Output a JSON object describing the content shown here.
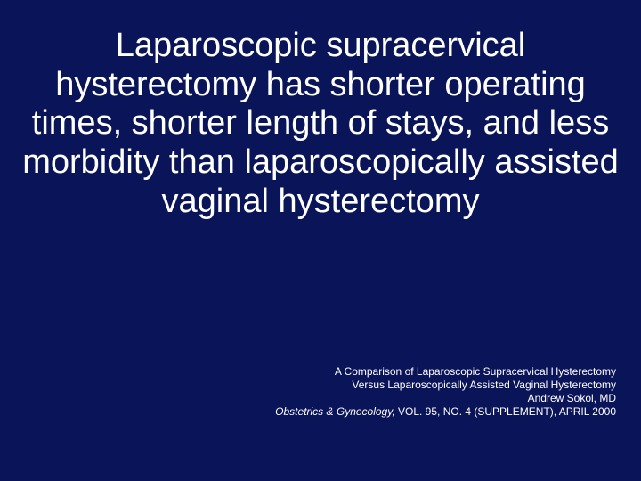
{
  "slide": {
    "background_color": "#0a1458",
    "text_color": "#ffffff",
    "main_statement": "Laparoscopic supracervical hysterectomy has shorter operating times, shorter length of stays, and less morbidity than laparoscopically assisted vaginal hysterectomy",
    "main_fontsize": 38,
    "citation": {
      "line1": "A Comparison of Laparoscopic Supracervical Hysterectomy",
      "line2": "Versus Laparoscopically Assisted Vaginal Hysterectomy",
      "line3": "Andrew Sokol, MD",
      "line4_journal": "Obstetrics & Gynecology,",
      "line4_rest": " VOL. 95, NO. 4 (SUPPLEMENT), APRIL 2000",
      "fontsize": 12
    }
  }
}
